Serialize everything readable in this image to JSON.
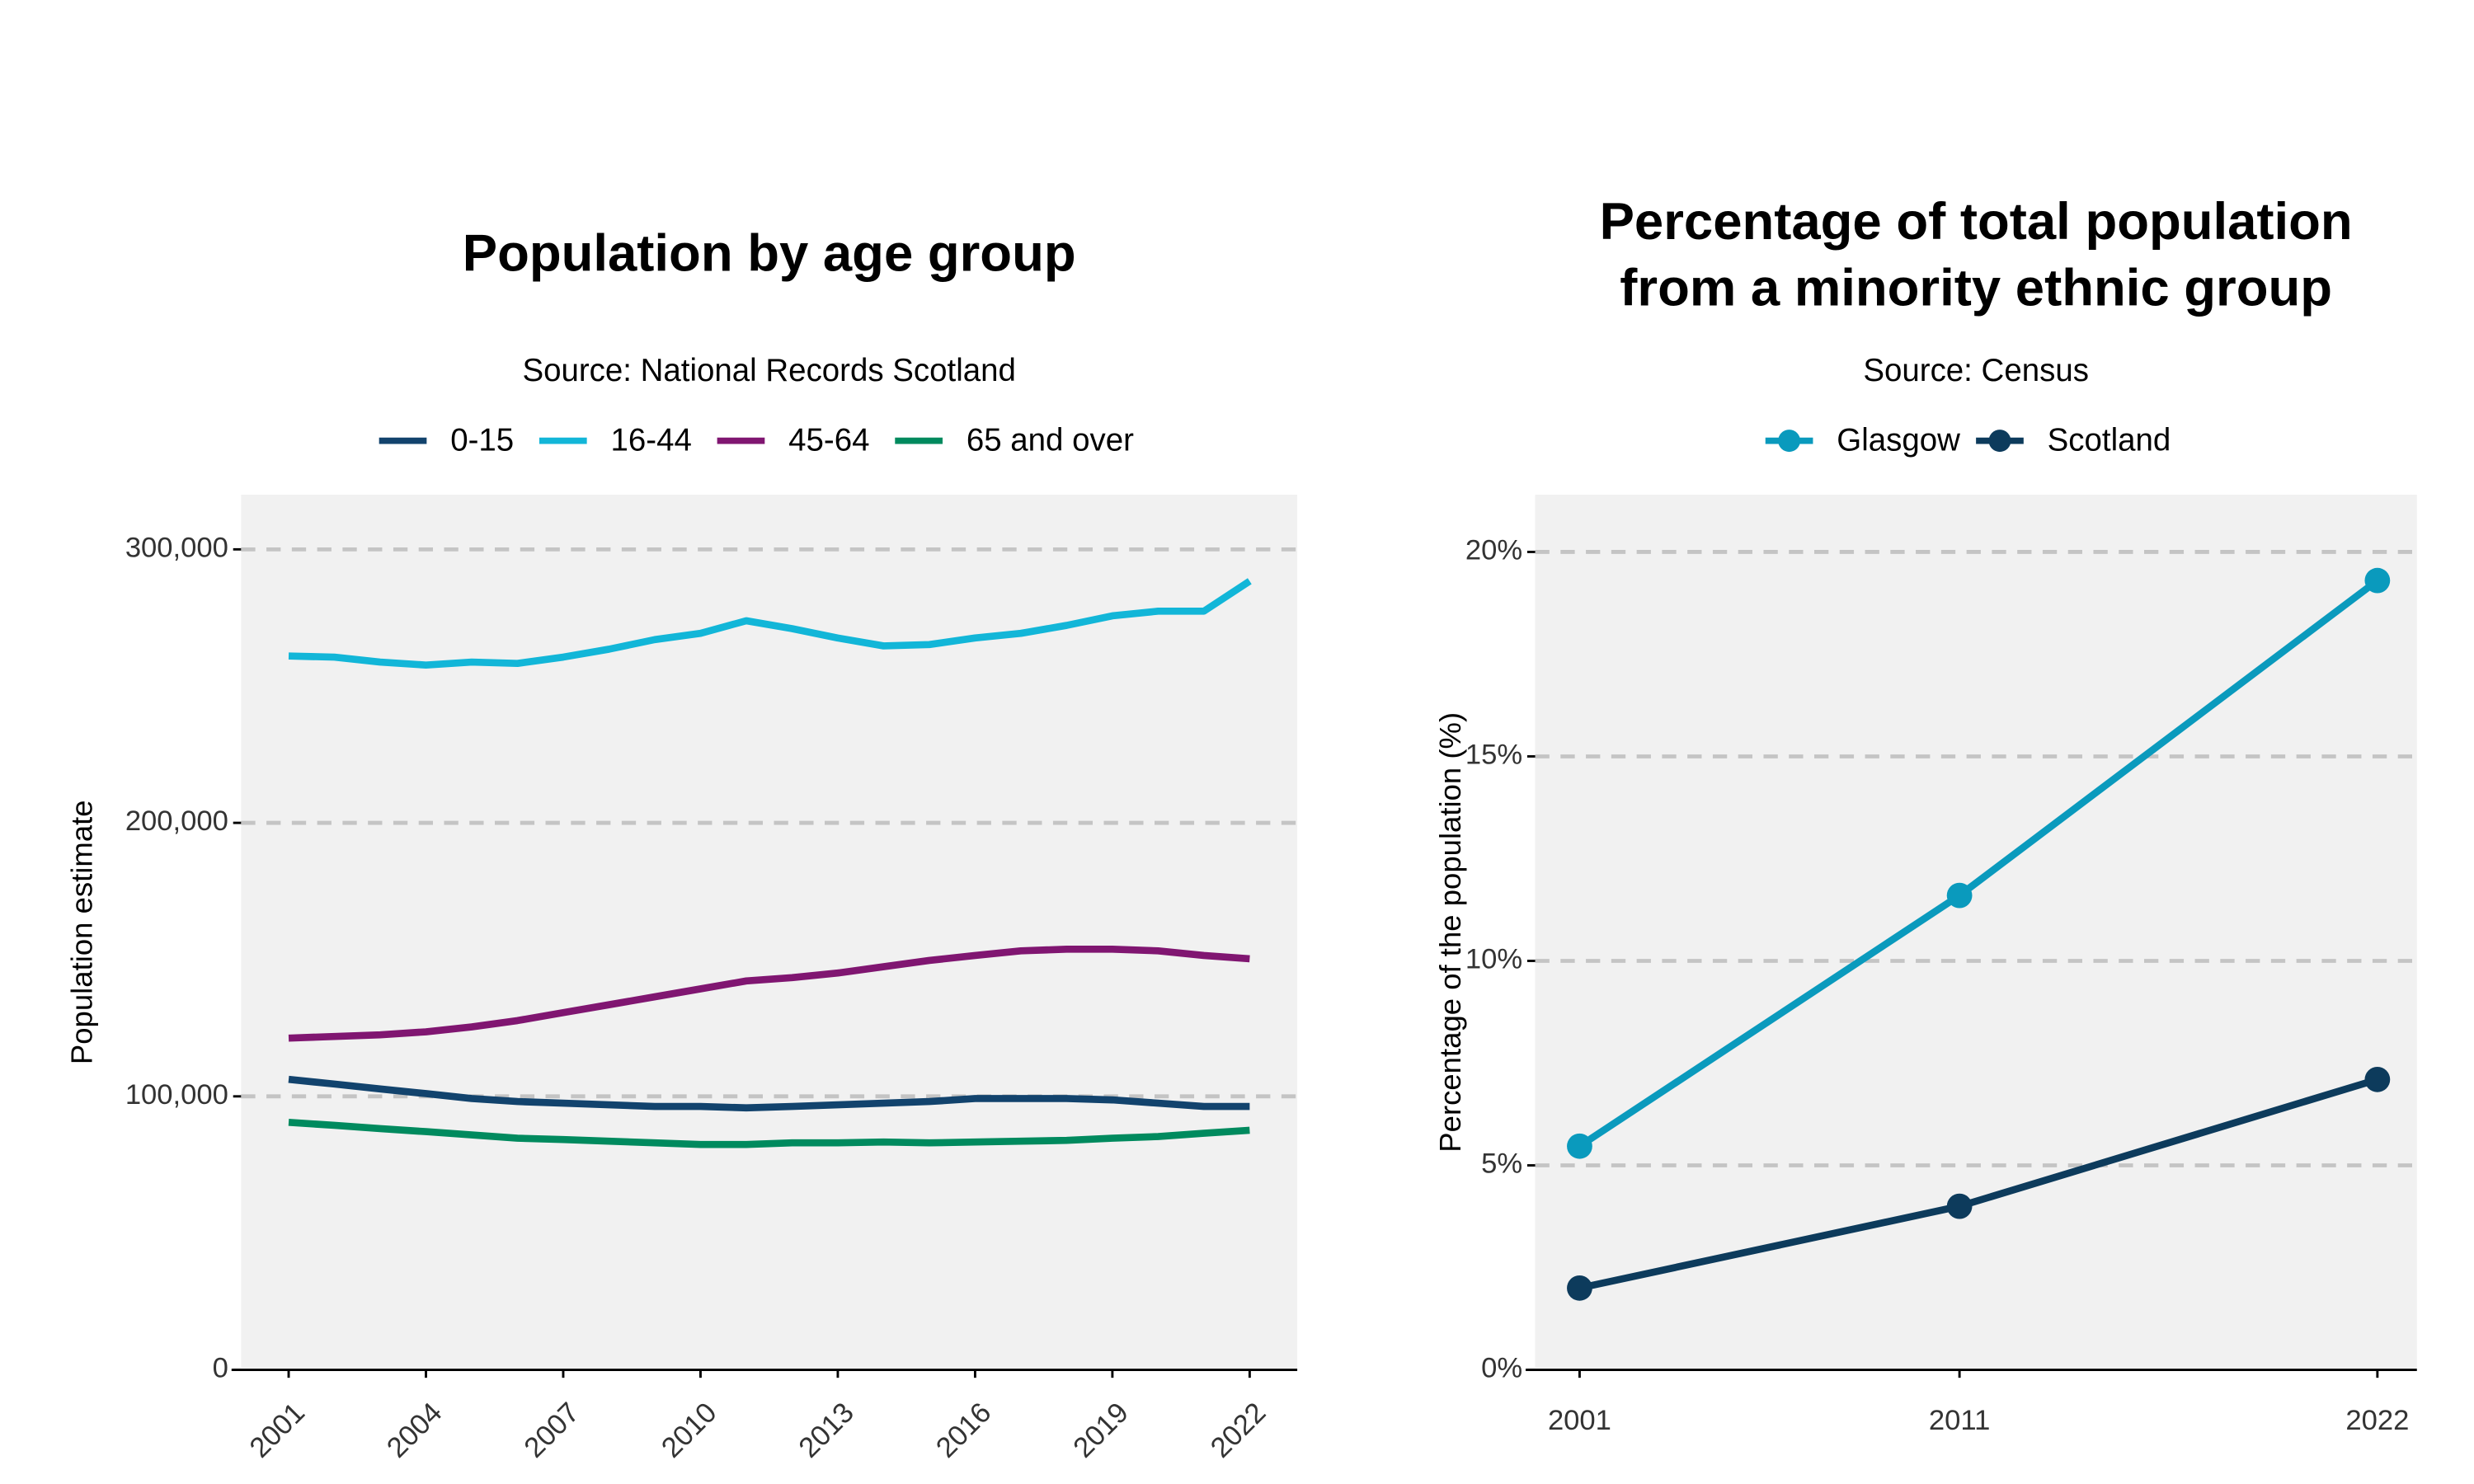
{
  "chart_data": [
    {
      "type": "line",
      "title": "Population by age group",
      "subtitle": "Source: National Records Scotland",
      "y_label": "Population estimate",
      "x": [
        2001,
        2002,
        2003,
        2004,
        2005,
        2006,
        2007,
        2008,
        2009,
        2010,
        2011,
        2012,
        2013,
        2014,
        2015,
        2016,
        2017,
        2018,
        2019,
        2020,
        2021,
        2022
      ],
      "series": [
        {
          "name": "0-15",
          "color": "#12436d",
          "values": [
            106200,
            104500,
            102700,
            101000,
            99200,
            98100,
            97500,
            96900,
            96300,
            96300,
            95800,
            96300,
            96900,
            97500,
            98100,
            99200,
            99200,
            99200,
            98700,
            97500,
            96300,
            96300
          ]
        },
        {
          "name": "16-44",
          "color": "#12b6d8",
          "values": [
            261000,
            260600,
            258800,
            257700,
            258800,
            258300,
            260600,
            263500,
            267000,
            269300,
            273900,
            271000,
            267600,
            264700,
            265200,
            267600,
            269300,
            272200,
            275700,
            277400,
            277400,
            288400
          ]
        },
        {
          "name": "45-64",
          "color": "#801671",
          "values": [
            121300,
            121900,
            122500,
            123600,
            125400,
            127700,
            130600,
            133500,
            136400,
            139300,
            142200,
            143400,
            145100,
            147400,
            149700,
            151500,
            153200,
            153800,
            153800,
            153200,
            151500,
            150300
          ]
        },
        {
          "name": "65 and over",
          "color": "#008a5e",
          "values": [
            90500,
            89400,
            88200,
            87100,
            85900,
            84700,
            84200,
            83600,
            83000,
            82400,
            82400,
            83000,
            83000,
            83300,
            83000,
            83300,
            83600,
            83900,
            84700,
            85300,
            86500,
            87600
          ]
        }
      ],
      "xlim": [
        1999.96,
        2023.04
      ],
      "xticks": [
        2001,
        2004,
        2007,
        2010,
        2013,
        2016,
        2019,
        2022
      ],
      "ylim": [
        0,
        320000
      ],
      "yticks": [
        0,
        {
          "value": 100000,
          "label": "100,000"
        },
        {
          "value": 200000,
          "label": "200,000"
        },
        {
          "value": 300000,
          "label": "300,000"
        }
      ],
      "grid": true,
      "legend": "top",
      "markers": false
    },
    {
      "type": "line",
      "title": [
        "Percentage of total population",
        "from a minority ethnic group"
      ],
      "subtitle": "Source: Census",
      "y_label": "Percentage of the population (%)",
      "x": [
        2001,
        2011,
        2022
      ],
      "series": [
        {
          "name": "Glasgow",
          "color": "#0a9abd",
          "values": [
            5.47,
            11.6,
            19.3
          ]
        },
        {
          "name": "Scotland",
          "color": "#0d3b5c",
          "values": [
            2.0,
            4.0,
            7.1
          ]
        }
      ],
      "xlim": [
        1999.83,
        2023.04
      ],
      "xticks": [
        2001,
        2011,
        2022
      ],
      "ylim": [
        0,
        21.4
      ],
      "yticks": [
        {
          "value": 0,
          "label": "0%"
        },
        {
          "value": 5,
          "label": "5%"
        },
        {
          "value": 10,
          "label": "10%"
        },
        {
          "value": 15,
          "label": "15%"
        },
        {
          "value": 20,
          "label": "20%"
        }
      ],
      "grid": true,
      "legend": "top",
      "markers": true
    }
  ]
}
